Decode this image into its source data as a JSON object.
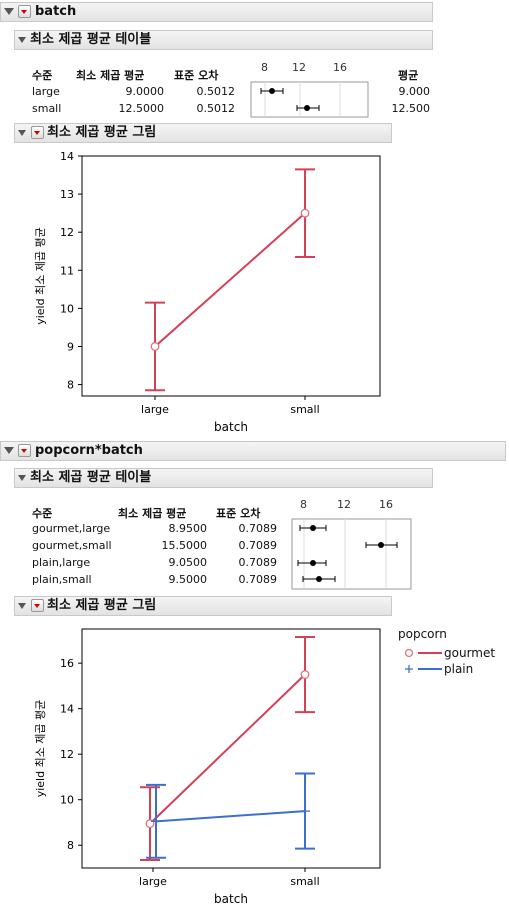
{
  "section1": {
    "title": "batch",
    "lsm_table": {
      "title": "최소 제곱 평균 테이블",
      "headers": {
        "level": "수준",
        "lsm": "최소 제곱 평균",
        "se": "표준 오차",
        "mean": "평균"
      },
      "axis_ticks": [
        "8",
        "12",
        "16"
      ],
      "rows": [
        {
          "level": "large",
          "lsm": "9.0000",
          "se": "0.5012",
          "mean": "9.000"
        },
        {
          "level": "small",
          "lsm": "12.5000",
          "se": "0.5012",
          "mean": "12.500"
        }
      ]
    },
    "plot_title": "최소 제곱 평균 그림"
  },
  "section2": {
    "title": "popcorn*batch",
    "lsm_table": {
      "title": "최소 제곱 평균 테이블",
      "headers": {
        "level": "수준",
        "lsm": "최소 제곱 평균",
        "se": "표준 오차"
      },
      "axis_ticks": [
        "8",
        "12",
        "16"
      ],
      "rows": [
        {
          "level": "gourmet,large",
          "lsm": "8.9500",
          "se": "0.7089"
        },
        {
          "level": "gourmet,small",
          "lsm": "15.5000",
          "se": "0.7089"
        },
        {
          "level": "plain,large",
          "lsm": "9.0500",
          "se": "0.7089"
        },
        {
          "level": "plain,small",
          "lsm": "9.5000",
          "se": "0.7089"
        }
      ]
    },
    "plot_title": "최소 제곱 평균 그림",
    "legend": {
      "title": "popcorn"
    }
  },
  "colors": {
    "red": "#d44055",
    "blue": "#3a6fd1",
    "pink_marker": "#e0707d"
  },
  "chart_data": [
    {
      "type": "line",
      "xlabel": "batch",
      "ylabel": "yield 최소 제곱 평균",
      "categories": [
        "large",
        "small"
      ],
      "ylim": [
        7.7,
        14
      ],
      "yticks": [
        8,
        9,
        10,
        11,
        12,
        13,
        14
      ],
      "series": [
        {
          "values": [
            9.0,
            12.5
          ],
          "lower": [
            7.85,
            11.35
          ],
          "upper": [
            10.15,
            13.65
          ],
          "color": "#d44055"
        }
      ]
    },
    {
      "type": "line",
      "xlabel": "batch",
      "ylabel": "yield 최소 제곱 평균",
      "categories": [
        "large",
        "small"
      ],
      "ylim": [
        7.0,
        17.5
      ],
      "yticks": [
        8,
        10,
        12,
        14,
        16
      ],
      "legend": "right",
      "series": [
        {
          "name": "gourmet",
          "values": [
            8.95,
            15.5
          ],
          "lower": [
            7.35,
            13.85
          ],
          "upper": [
            10.55,
            17.15
          ],
          "color": "#d44055",
          "marker": "circle"
        },
        {
          "name": "plain",
          "values": [
            9.05,
            9.5
          ],
          "lower": [
            7.45,
            7.85
          ],
          "upper": [
            10.65,
            11.15
          ],
          "color": "#3a6fd1",
          "marker": "plus"
        }
      ]
    }
  ]
}
